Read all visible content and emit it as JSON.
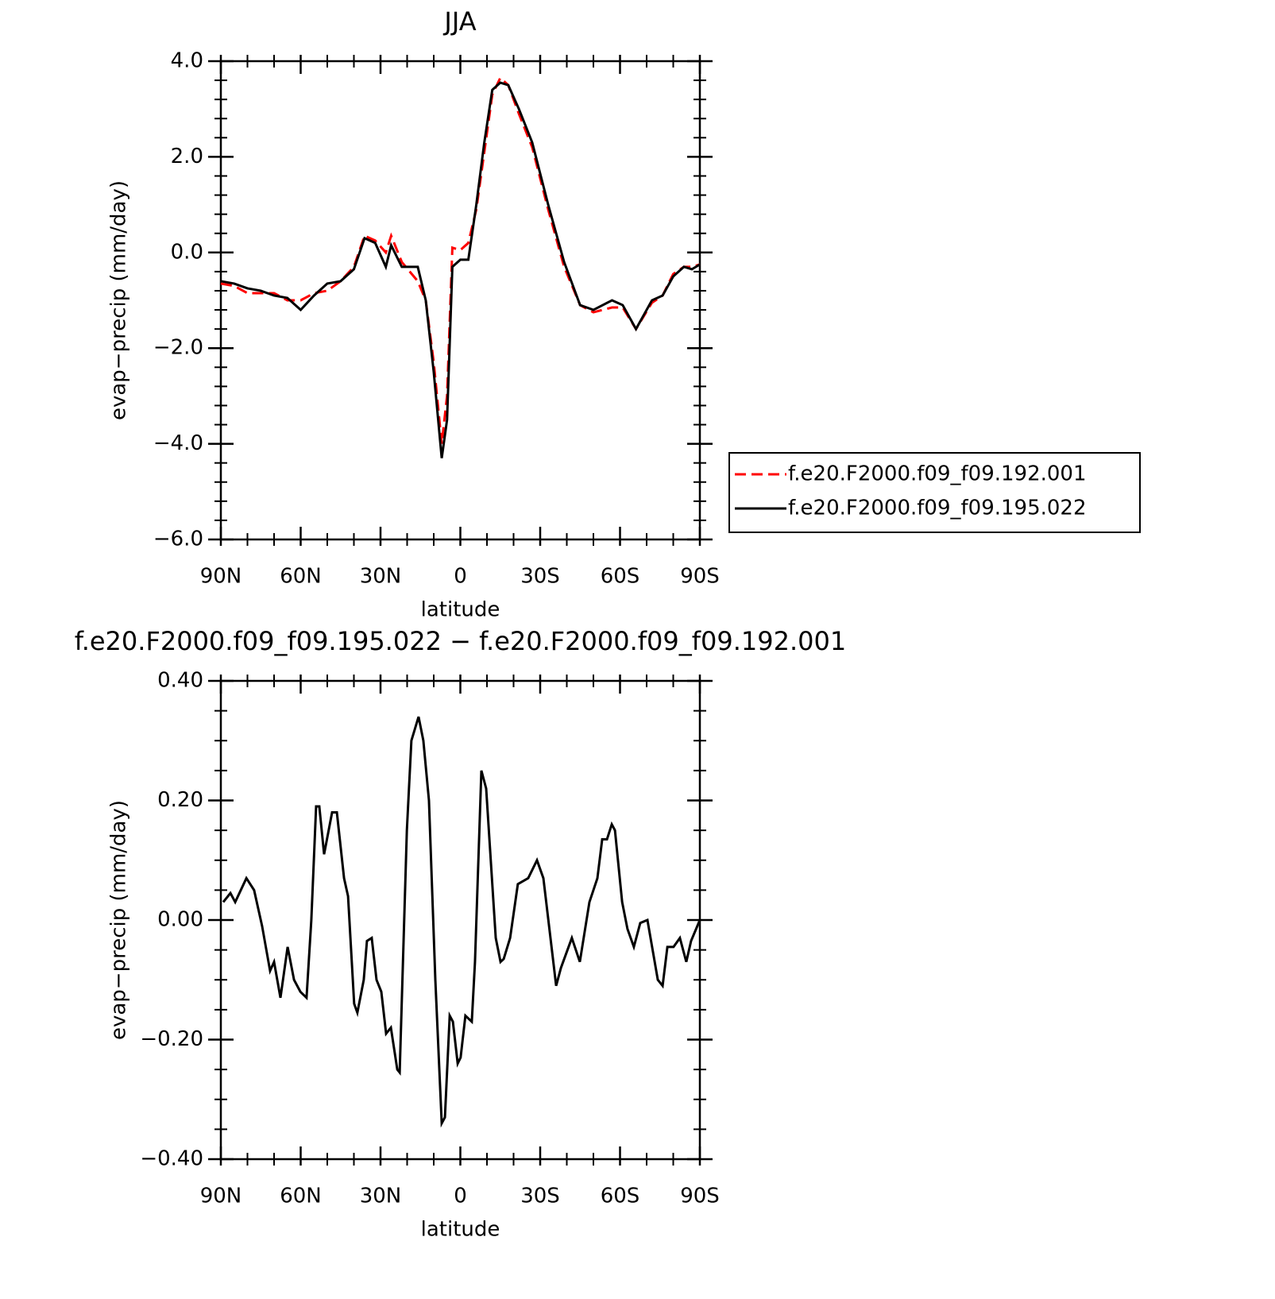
{
  "chart_data": [
    {
      "type": "line",
      "title": "JJA",
      "xlabel": "latitude",
      "ylabel": "evap−precip (mm/day)",
      "xlim": [
        90,
        -90
      ],
      "xticks": [
        {
          "value": 90,
          "label": "90N"
        },
        {
          "value": 60,
          "label": "60N"
        },
        {
          "value": 30,
          "label": "30N"
        },
        0,
        {
          "value": -30,
          "label": "30S"
        },
        {
          "value": -60,
          "label": "60S"
        },
        {
          "value": -90,
          "label": "90S"
        }
      ],
      "ylim": [
        -6,
        4
      ],
      "yticks": [
        {
          "value": -6,
          "label": "−6.0"
        },
        {
          "value": -4,
          "label": "−4.0"
        },
        {
          "value": -2,
          "label": "−2.0"
        },
        {
          "value": 0,
          "label": "0.0"
        },
        {
          "value": 2,
          "label": "2.0"
        },
        {
          "value": 4,
          "label": "4.0"
        }
      ],
      "x": [
        90,
        85,
        80,
        75,
        70,
        65,
        60,
        55,
        50,
        45,
        40,
        36,
        32,
        28,
        26,
        22,
        16,
        13,
        10,
        7,
        5,
        3,
        0,
        -3,
        -6,
        -9,
        -12,
        -15,
        -18,
        -22,
        -27,
        -33,
        -39,
        -45,
        -50,
        -57,
        -61,
        -66,
        -72,
        -76,
        -80,
        -84,
        -87,
        -90
      ],
      "series": [
        {
          "name": "f.e20.F2000.f09_f09.192.001",
          "color": "#ff0000",
          "dash": true,
          "values": [
            -0.65,
            -0.7,
            -0.85,
            -0.85,
            -0.85,
            -1.0,
            -1.0,
            -0.85,
            -0.8,
            -0.6,
            -0.3,
            0.35,
            0.25,
            0.0,
            0.35,
            -0.2,
            -0.6,
            -1.0,
            -2.3,
            -4.0,
            -3.0,
            0.1,
            0.05,
            0.2,
            0.9,
            2.1,
            3.3,
            3.65,
            3.5,
            2.9,
            2.2,
            0.9,
            -0.3,
            -1.1,
            -1.25,
            -1.15,
            -1.15,
            -1.6,
            -1.05,
            -0.9,
            -0.45,
            -0.3,
            -0.3,
            -0.25
          ]
        },
        {
          "name": "f.e20.F2000.f09_f09.195.022",
          "color": "#000000",
          "dash": false,
          "values": [
            -0.6,
            -0.65,
            -0.75,
            -0.8,
            -0.9,
            -0.95,
            -1.2,
            -0.9,
            -0.65,
            -0.6,
            -0.35,
            0.3,
            0.2,
            -0.3,
            0.15,
            -0.3,
            -0.3,
            -1.0,
            -2.5,
            -4.3,
            -3.5,
            -0.3,
            -0.15,
            -0.15,
            1.0,
            2.3,
            3.4,
            3.55,
            3.5,
            3.0,
            2.3,
            1.0,
            -0.2,
            -1.1,
            -1.2,
            -1.0,
            -1.1,
            -1.6,
            -1.0,
            -0.9,
            -0.5,
            -0.3,
            -0.35,
            -0.25
          ]
        }
      ]
    },
    {
      "type": "line",
      "title": "f.e20.F2000.f09_f09.195.022 − f.e20.F2000.f09_f09.192.001",
      "xlabel": "latitude",
      "ylabel": "evap−precip (mm/day)",
      "xlim": [
        90,
        -90
      ],
      "xticks": [
        {
          "value": 90,
          "label": "90N"
        },
        {
          "value": 60,
          "label": "60N"
        },
        {
          "value": 30,
          "label": "30N"
        },
        0,
        {
          "value": -30,
          "label": "30S"
        },
        {
          "value": -60,
          "label": "60S"
        },
        {
          "value": -90,
          "label": "90S"
        }
      ],
      "ylim": [
        -0.4,
        0.4
      ],
      "yticks": [
        {
          "value": -0.4,
          "label": "−0.40"
        },
        {
          "value": -0.2,
          "label": "−0.20"
        },
        {
          "value": 0,
          "label": "0.00"
        },
        {
          "value": 0.2,
          "label": "0.20"
        },
        {
          "value": 0.4,
          "label": "0.40"
        }
      ],
      "x": [
        89.1,
        86.4,
        84.6,
        80.4,
        77.5,
        74.5,
        71.5,
        70,
        67.6,
        64.9,
        62.5,
        60.1,
        57.8,
        56,
        54.2,
        53,
        51.2,
        48.2,
        46.4,
        43.7,
        42.2,
        39.9,
        38.7,
        36.3,
        35.1,
        33.3,
        31.5,
        29.7,
        27.9,
        26.1,
        23.7,
        22.8,
        20.1,
        18.4,
        15.7,
        13.9,
        11.8,
        9.4,
        7,
        5.8,
        4,
        2.8,
        1,
        -0.1,
        -1.9,
        -4.3,
        -5.5,
        -7.9,
        -9.7,
        -13.3,
        -15.1,
        -16.3,
        -18.7,
        -21.6,
        -25.5,
        -28.8,
        -31.2,
        -36,
        -37.8,
        -41.9,
        -44.9,
        -48.5,
        -51.5,
        -53.3,
        -55.1,
        -56.9,
        -58.1,
        -60.8,
        -62.8,
        -65.2,
        -67.6,
        -70.3,
        -74.2,
        -76,
        -77.8,
        -80.1,
        -82.5,
        -84.9,
        -86.7,
        -90
      ],
      "color": "#000000",
      "values": [
        0.03,
        0.045,
        0.03,
        0.07,
        0.05,
        -0.01,
        -0.085,
        -0.07,
        -0.13,
        -0.045,
        -0.1,
        -0.12,
        -0.13,
        0.0,
        0.19,
        0.19,
        0.11,
        0.18,
        0.18,
        0.07,
        0.04,
        -0.14,
        -0.155,
        -0.1,
        -0.035,
        -0.03,
        -0.1,
        -0.12,
        -0.19,
        -0.18,
        -0.25,
        -0.255,
        0.15,
        0.3,
        0.34,
        0.3,
        0.2,
        -0.1,
        -0.34,
        -0.33,
        -0.16,
        -0.17,
        -0.24,
        -0.23,
        -0.16,
        -0.17,
        -0.07,
        0.25,
        0.22,
        -0.03,
        -0.07,
        -0.065,
        -0.03,
        0.06,
        0.07,
        0.1,
        0.07,
        -0.11,
        -0.08,
        -0.03,
        -0.07,
        0.03,
        0.07,
        0.135,
        0.135,
        0.16,
        0.15,
        0.03,
        -0.015,
        -0.045,
        -0.005,
        0.0,
        -0.1,
        -0.11,
        -0.045,
        -0.045,
        -0.03,
        -0.07,
        -0.035,
        0.0
      ]
    }
  ]
}
